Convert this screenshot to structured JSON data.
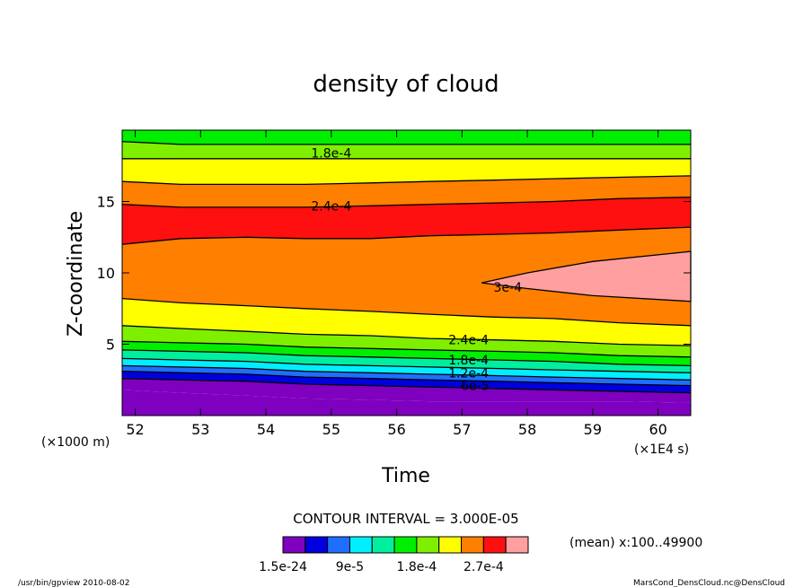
{
  "chart_data": {
    "type": "heatmap",
    "title": "density of cloud",
    "xlabel": "Time",
    "ylabel": "Z-coordinate",
    "x_units_label": "(×1E4 s)",
    "y_units_label": "(×1000 m)",
    "xlim": [
      51.8,
      60.5
    ],
    "ylim": [
      0,
      20
    ],
    "x_ticks": [
      52,
      53,
      54,
      55,
      56,
      57,
      58,
      59,
      60
    ],
    "y_ticks": [
      5,
      10,
      15
    ],
    "contour_interval_label": "CONTOUR INTERVAL = 3.000E-05",
    "mean_label": "(mean) x:100..49900",
    "colorbar": {
      "colors": [
        "#7f00bf",
        "#0000df",
        "#1f6fff",
        "#00efff",
        "#00ef9f",
        "#00ef00",
        "#7fef00",
        "#ffff00",
        "#ff7f00",
        "#ff1010",
        "#ff9f9f"
      ],
      "tick_labels": [
        "1.5e-24",
        "9e-5",
        "1.8e-4",
        "2.7e-4"
      ]
    },
    "contour_labels": [
      {
        "text": "1.8e-4",
        "x": 55.0,
        "y": 18.4
      },
      {
        "text": "2.4e-4",
        "x": 55.0,
        "y": 14.7
      },
      {
        "text": "3e-4",
        "x": 57.7,
        "y": 9.0
      },
      {
        "text": "2.4e-4",
        "x": 57.1,
        "y": 5.3
      },
      {
        "text": "1.8e-4",
        "x": 57.1,
        "y": 3.9
      },
      {
        "text": "1.2e-4",
        "x": 57.1,
        "y": 3.0
      },
      {
        "text": "6e-5",
        "x": 57.2,
        "y": 2.1
      }
    ],
    "bands": [
      {
        "level": 0,
        "z_start": [
          1.8,
          1.6,
          1.4,
          1.2,
          1.1,
          1.0,
          1.0,
          1.0,
          1.0,
          0.9
        ]
      },
      {
        "level": 1,
        "z_start": [
          2.6,
          2.5,
          2.4,
          2.2,
          2.1,
          2.0,
          1.9,
          1.8,
          1.7,
          1.6
        ]
      },
      {
        "level": 2,
        "z_start": [
          3.1,
          3.0,
          2.9,
          2.7,
          2.6,
          2.5,
          2.4,
          2.3,
          2.2,
          2.1
        ]
      },
      {
        "level": 3,
        "z_start": [
          3.5,
          3.4,
          3.3,
          3.1,
          3.0,
          2.9,
          2.8,
          2.7,
          2.6,
          2.5
        ]
      },
      {
        "level": 4,
        "z_start": [
          4.0,
          3.9,
          3.8,
          3.6,
          3.5,
          3.4,
          3.3,
          3.2,
          3.1,
          3.0
        ]
      },
      {
        "level": 5,
        "z_start": [
          4.6,
          4.5,
          4.4,
          4.2,
          4.1,
          4.0,
          3.9,
          3.8,
          3.6,
          3.5
        ]
      },
      {
        "level": 6,
        "z_start": [
          5.2,
          5.1,
          5.0,
          4.8,
          4.7,
          4.6,
          4.5,
          4.4,
          4.2,
          4.1
        ]
      },
      {
        "level": 7,
        "z_start": [
          6.3,
          6.1,
          5.9,
          5.7,
          5.6,
          5.4,
          5.3,
          5.2,
          5.0,
          4.9
        ]
      },
      {
        "level": 8,
        "z_start": [
          8.2,
          7.9,
          7.7,
          7.5,
          7.3,
          7.1,
          6.9,
          6.8,
          6.5,
          6.3
        ]
      },
      {
        "level": 9,
        "z_start": [
          12.0,
          12.4,
          12.5,
          12.4,
          12.4,
          12.6,
          12.7,
          12.8,
          13.0,
          13.2
        ]
      },
      {
        "level": 8,
        "z_start": [
          14.8,
          14.6,
          14.6,
          14.6,
          14.7,
          14.8,
          14.9,
          15.0,
          15.2,
          15.3
        ]
      },
      {
        "level": 7,
        "z_start": [
          16.4,
          16.2,
          16.2,
          16.2,
          16.3,
          16.4,
          16.5,
          16.6,
          16.7,
          16.8
        ]
      },
      {
        "level": 6,
        "z_start": [
          18.0,
          18.0,
          18.0,
          18.0,
          18.0,
          18.0,
          18.0,
          18.0,
          18.0,
          18.0
        ]
      },
      {
        "level": 5,
        "z_start": [
          19.2,
          19.0,
          19.0,
          19.0,
          19.0,
          19.0,
          19.0,
          19.0,
          19.0,
          19.0
        ]
      }
    ],
    "band_x": [
      51.8,
      52.7,
      53.7,
      54.6,
      55.6,
      56.5,
      57.5,
      58.4,
      59.4,
      60.5
    ],
    "wedge": {
      "level": 10,
      "top": [
        [
          57.3,
          9.3
        ],
        [
          58.0,
          10.0
        ],
        [
          59.0,
          10.8
        ],
        [
          60.5,
          11.5
        ]
      ],
      "bottom": [
        [
          60.5,
          8.0
        ],
        [
          59.0,
          8.4
        ],
        [
          58.0,
          8.9
        ],
        [
          57.3,
          9.3
        ]
      ]
    }
  },
  "footer": {
    "left": "/usr/bin/gpview   2010-08-02",
    "right": "MarsCond_DensCloud.nc@DensCloud"
  }
}
